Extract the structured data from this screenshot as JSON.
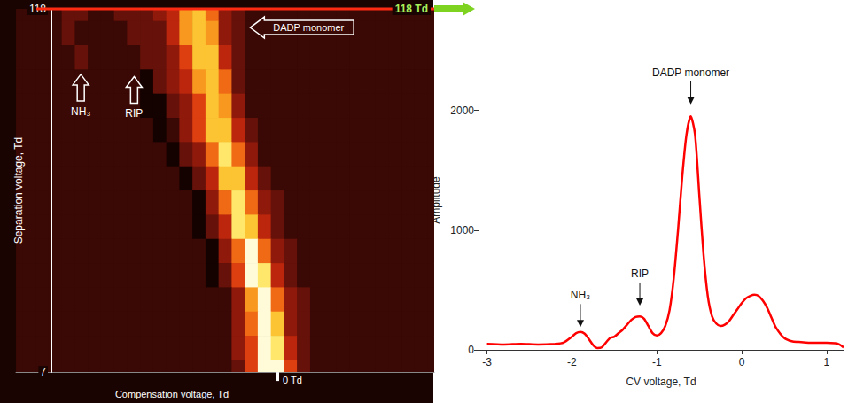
{
  "chart_data": [
    {
      "type": "heatmap",
      "x_label": "Compensation voltage, Td",
      "y_label": "Separation voltage, Td",
      "xlim": [
        -2.5,
        1.5
      ],
      "xticks": [
        {
          "value": 0,
          "label": "0 Td"
        }
      ],
      "ylim": [
        7,
        118
      ],
      "yticks": [
        7,
        118
      ],
      "cells": {
        "x": [
          -2.5,
          -2.375,
          -2.25,
          -2.125,
          -2,
          -1.875,
          -1.75,
          -1.625,
          -1.5,
          -1.375,
          -1.25,
          -1.125,
          -1,
          -0.875,
          -0.75,
          -0.625,
          -0.5,
          -0.375,
          -0.25,
          -0.125,
          0,
          0.125,
          0.25,
          0.375,
          0.5,
          0.625,
          0.75,
          0.875,
          1,
          1.125,
          1.25,
          1.375,
          1.5
        ],
        "y": [
          118,
          110.6,
          103.2,
          95.8,
          88.4,
          81,
          73.6,
          66.2,
          58.8,
          51.4,
          44,
          36.6,
          29.2,
          21.8,
          14.4,
          7
        ],
        "values": [
          [
            1,
            1,
            1,
            1,
            2,
            2,
            1,
            1,
            2,
            2,
            2,
            3,
            4,
            7,
            8,
            6,
            3,
            2,
            1,
            1,
            1,
            1,
            1,
            1,
            1,
            1,
            1,
            1,
            1,
            1,
            1,
            1,
            1
          ],
          [
            1,
            1,
            1,
            1,
            2,
            1,
            1,
            1,
            1,
            2,
            2,
            2,
            4,
            7,
            8,
            7,
            3,
            2,
            1,
            1,
            1,
            1,
            1,
            1,
            1,
            1,
            1,
            1,
            1,
            1,
            1,
            1,
            1
          ],
          [
            1,
            1,
            1,
            1,
            1,
            2,
            1,
            1,
            1,
            1,
            2,
            2,
            3,
            5,
            8,
            8,
            4,
            2,
            1,
            1,
            1,
            1,
            1,
            1,
            1,
            1,
            1,
            1,
            1,
            1,
            1,
            1,
            1
          ],
          [
            1,
            1,
            1,
            1,
            1,
            1,
            1,
            1,
            1,
            1,
            0,
            2,
            3,
            4,
            7,
            8,
            6,
            2,
            1,
            1,
            1,
            1,
            1,
            1,
            1,
            1,
            1,
            1,
            1,
            1,
            1,
            1,
            1
          ],
          [
            1,
            1,
            1,
            1,
            1,
            1,
            1,
            1,
            1,
            1,
            0,
            0,
            2,
            3,
            5,
            8,
            7,
            3,
            1,
            1,
            1,
            1,
            1,
            1,
            1,
            1,
            1,
            1,
            1,
            1,
            1,
            1,
            1
          ],
          [
            1,
            1,
            1,
            1,
            1,
            1,
            1,
            1,
            1,
            1,
            1,
            0,
            1,
            3,
            5,
            8,
            8,
            4,
            2,
            1,
            1,
            1,
            1,
            1,
            1,
            1,
            1,
            1,
            1,
            1,
            1,
            1,
            1
          ],
          [
            1,
            1,
            1,
            1,
            1,
            1,
            1,
            1,
            1,
            1,
            1,
            1,
            0,
            2,
            3,
            6,
            9,
            6,
            3,
            1,
            1,
            1,
            1,
            1,
            1,
            1,
            1,
            1,
            1,
            1,
            1,
            1,
            1
          ],
          [
            1,
            1,
            1,
            1,
            1,
            1,
            1,
            1,
            1,
            1,
            1,
            1,
            1,
            0,
            2,
            4,
            8,
            8,
            4,
            2,
            1,
            1,
            1,
            1,
            1,
            1,
            1,
            1,
            1,
            1,
            1,
            1,
            1
          ],
          [
            1,
            1,
            1,
            1,
            1,
            1,
            1,
            1,
            1,
            1,
            1,
            1,
            1,
            1,
            0,
            3,
            6,
            9,
            6,
            3,
            2,
            1,
            1,
            1,
            1,
            1,
            1,
            1,
            1,
            1,
            1,
            1,
            1
          ],
          [
            1,
            1,
            1,
            1,
            1,
            1,
            1,
            1,
            1,
            1,
            1,
            1,
            1,
            1,
            0,
            2,
            4,
            9,
            8,
            4,
            2,
            1,
            1,
            1,
            1,
            1,
            1,
            1,
            1,
            1,
            1,
            1,
            1
          ],
          [
            1,
            1,
            1,
            1,
            1,
            1,
            1,
            1,
            1,
            1,
            1,
            1,
            1,
            1,
            1,
            0,
            3,
            6,
            10,
            6,
            3,
            2,
            1,
            1,
            1,
            1,
            1,
            1,
            1,
            1,
            1,
            1,
            1
          ],
          [
            1,
            1,
            1,
            1,
            1,
            1,
            1,
            1,
            1,
            1,
            1,
            1,
            1,
            1,
            1,
            0,
            2,
            5,
            10,
            9,
            4,
            2,
            1,
            1,
            1,
            1,
            1,
            1,
            1,
            1,
            1,
            1,
            1
          ],
          [
            1,
            1,
            1,
            1,
            1,
            1,
            1,
            1,
            1,
            1,
            1,
            1,
            1,
            1,
            1,
            1,
            1,
            3,
            7,
            10,
            6,
            3,
            2,
            1,
            1,
            1,
            1,
            1,
            1,
            1,
            1,
            1,
            1
          ],
          [
            1,
            1,
            1,
            1,
            1,
            1,
            1,
            1,
            1,
            1,
            1,
            1,
            1,
            1,
            1,
            1,
            1,
            3,
            6,
            10,
            8,
            3,
            2,
            1,
            1,
            1,
            1,
            1,
            1,
            1,
            1,
            1,
            1
          ],
          [
            1,
            1,
            1,
            1,
            1,
            1,
            1,
            1,
            1,
            1,
            1,
            1,
            1,
            1,
            1,
            1,
            1,
            3,
            5,
            10,
            9,
            4,
            2,
            1,
            1,
            1,
            1,
            1,
            1,
            1,
            1,
            1,
            1
          ],
          [
            1,
            1,
            1,
            1,
            1,
            1,
            1,
            1,
            1,
            1,
            1,
            1,
            1,
            1,
            1,
            1,
            1,
            2,
            5,
            10,
            10,
            5,
            2,
            1,
            1,
            1,
            1,
            1,
            1,
            1,
            1,
            1,
            1
          ]
        ]
      },
      "slice": {
        "value": 118,
        "label": "118 Td"
      },
      "annotations": [
        {
          "text": "DADP monomer",
          "x": -0.26,
          "y": 112.3
        },
        {
          "text": "NH₃",
          "x": -1.88,
          "y": 98
        },
        {
          "text": "RIP",
          "x": -1.37,
          "y": 97.3
        }
      ]
    },
    {
      "type": "line",
      "x_label": "CV voltage, Td",
      "y_label": "Amplitude",
      "xlim": [
        -3.1,
        1.2
      ],
      "xticks": [
        -3,
        -2,
        -1,
        0,
        1
      ],
      "ylim": [
        0,
        2500
      ],
      "yticks": [
        0,
        1000,
        2000
      ],
      "color": "#ff0000",
      "x": [
        -3.0,
        -2.8,
        -2.6,
        -2.4,
        -2.2,
        -2.1,
        -2.0,
        -1.95,
        -1.9,
        -1.85,
        -1.8,
        -1.75,
        -1.7,
        -1.65,
        -1.6,
        -1.55,
        -1.5,
        -1.45,
        -1.4,
        -1.35,
        -1.3,
        -1.25,
        -1.2,
        -1.15,
        -1.1,
        -1.05,
        -1.0,
        -0.95,
        -0.9,
        -0.85,
        -0.8,
        -0.75,
        -0.7,
        -0.65,
        -0.6,
        -0.55,
        -0.5,
        -0.45,
        -0.4,
        -0.35,
        -0.3,
        -0.25,
        -0.2,
        -0.15,
        -0.1,
        -0.05,
        0,
        0.05,
        0.1,
        0.15,
        0.2,
        0.25,
        0.3,
        0.35,
        0.4,
        0.5,
        0.6,
        0.7,
        0.8,
        0.9,
        1.0,
        1.1,
        1.15,
        1.2
      ],
      "values": [
        50,
        45,
        50,
        45,
        50,
        60,
        110,
        140,
        150,
        135,
        90,
        40,
        15,
        20,
        60,
        100,
        110,
        140,
        170,
        210,
        250,
        275,
        280,
        260,
        200,
        140,
        120,
        140,
        200,
        330,
        600,
        1000,
        1450,
        1800,
        1950,
        1800,
        1300,
        800,
        450,
        280,
        220,
        200,
        210,
        240,
        290,
        340,
        390,
        430,
        450,
        460,
        450,
        410,
        350,
        270,
        190,
        100,
        70,
        65,
        60,
        60,
        60,
        55,
        45,
        20
      ],
      "annotations": [
        {
          "text": "DADP monomer",
          "x": -0.6,
          "y": 2050
        },
        {
          "text": "RIP",
          "x": -1.2,
          "y": 370
        },
        {
          "text": "NH₃",
          "x": -1.9,
          "y": 190
        }
      ]
    }
  ]
}
